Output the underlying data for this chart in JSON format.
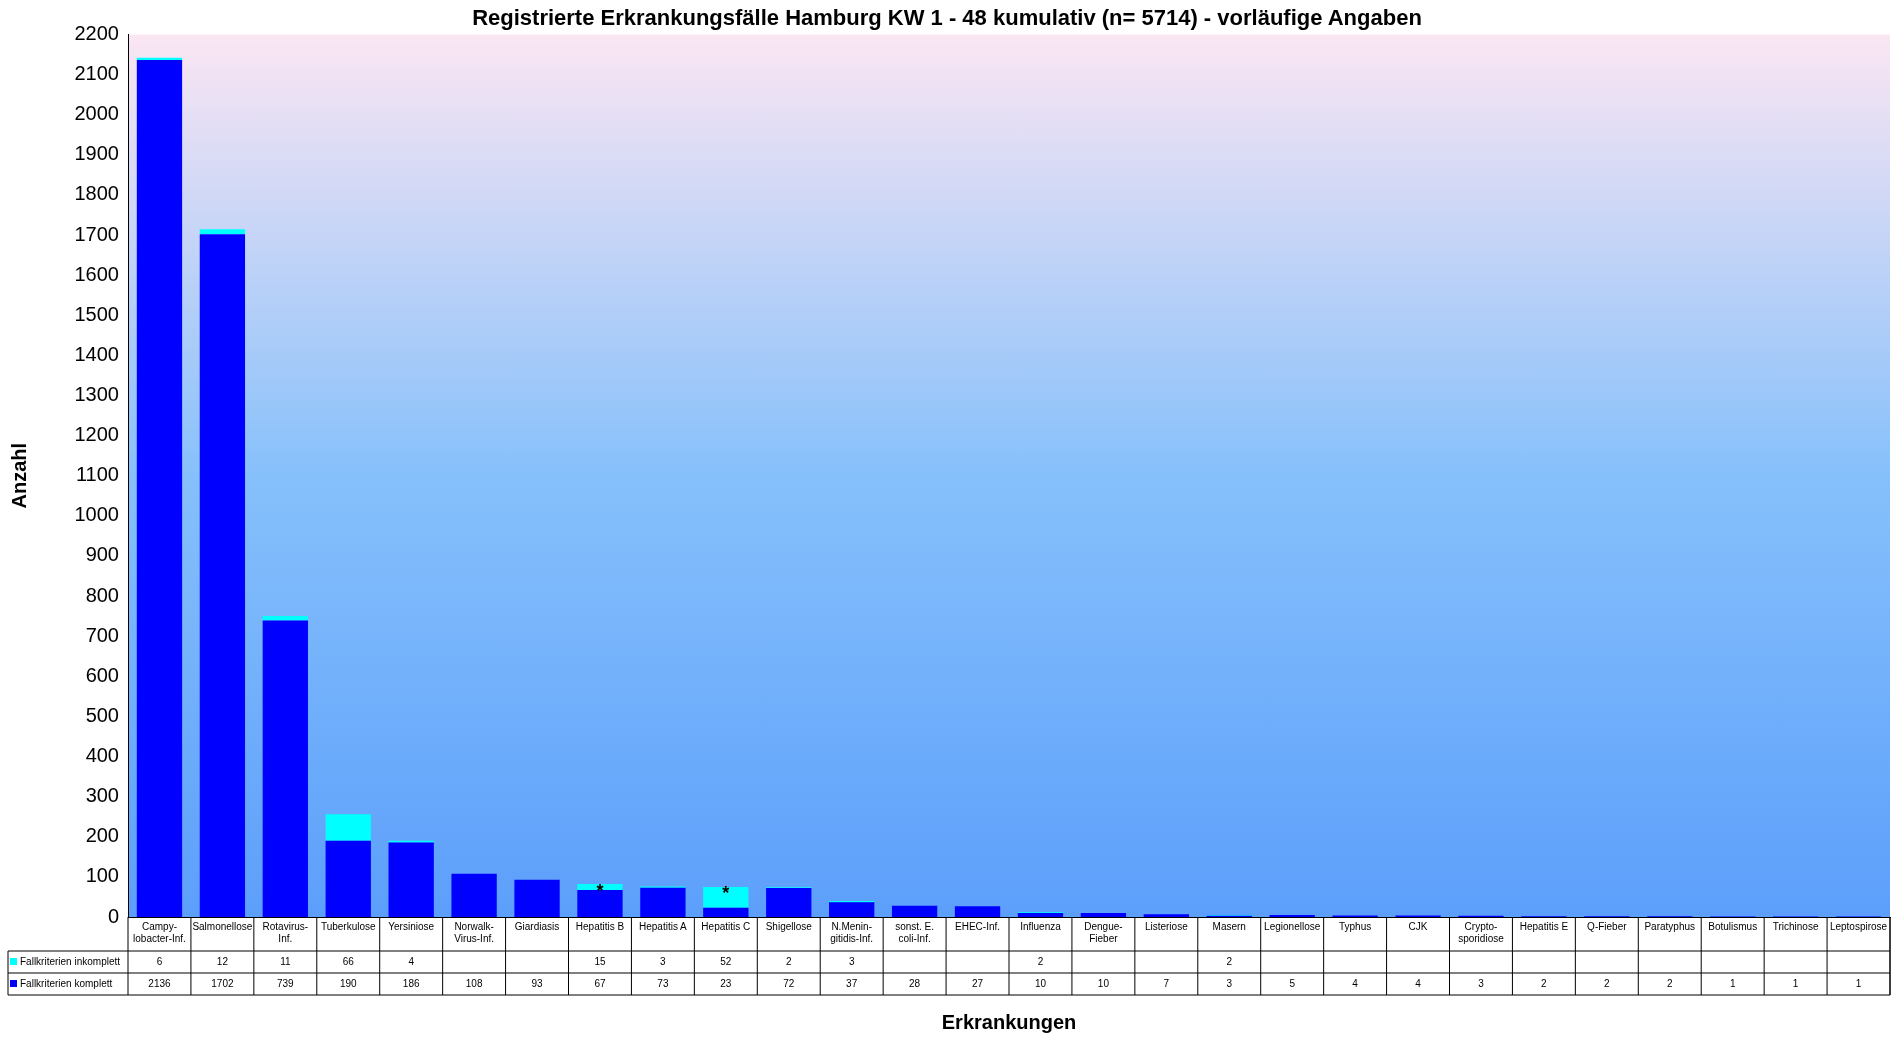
{
  "chart_data": {
    "type": "bar",
    "title": "Registrierte Erkrankungsfälle Hamburg KW 1 - 48 kumulativ (n= 5714) - vorläufige Angaben",
    "xlabel": "Erkrankungen",
    "ylabel": "Anzahl",
    "categories": [
      "Campy-lobacter-Inf.",
      "Salmonellose",
      "Rotavirus-Inf.",
      "Tuberkulose",
      "Yersiniose",
      "Norwalk-Virus-Inf.",
      "Giardiasis",
      "Hepatitis B",
      "Hepatitis A",
      "Hepatitis C",
      "Shigellose",
      "N.Menin-gitidis-Inf.",
      "sonst. E. coli-Inf.",
      "EHEC-Inf.",
      "Influenza",
      "Dengue-Fieber",
      "Listeriose",
      "Masern",
      "Legionellose",
      "Typhus",
      "CJK",
      "Crypto-sporidiose",
      "Hepatitis E",
      "Q-Fieber",
      "Paratyphus",
      "Botulismus",
      "Trichinose",
      "Leptospirose"
    ],
    "series": [
      {
        "name": "Fallkriterien komplett",
        "color": "#0000ff",
        "values": [
          2136,
          1702,
          739,
          190,
          186,
          108,
          93,
          67,
          73,
          23,
          72,
          37,
          28,
          27,
          10,
          10,
          7,
          3,
          5,
          4,
          4,
          3,
          2,
          2,
          2,
          1,
          1,
          1
        ]
      },
      {
        "name": "Fallkriterien inkomplett",
        "color": "#00ffff",
        "values": [
          6,
          12,
          11,
          66,
          4,
          null,
          null,
          15,
          3,
          52,
          2,
          3,
          null,
          null,
          2,
          null,
          null,
          2,
          null,
          null,
          null,
          null,
          null,
          null,
          null,
          null,
          null,
          null
        ]
      }
    ],
    "stacked": true,
    "ylim": [
      0,
      2200
    ],
    "yticks": [
      0,
      100,
      200,
      300,
      400,
      500,
      600,
      700,
      800,
      900,
      1000,
      1100,
      1200,
      1300,
      1400,
      1500,
      1600,
      1700,
      1800,
      1900,
      2000,
      2100,
      2200
    ],
    "grid": false,
    "legend": "bottom",
    "data_labels": true,
    "annotations": [
      {
        "text": "*",
        "x": "Hepatitis B",
        "y": 80
      },
      {
        "text": "*",
        "x": "Hepatitis C",
        "y": 75
      }
    ]
  }
}
